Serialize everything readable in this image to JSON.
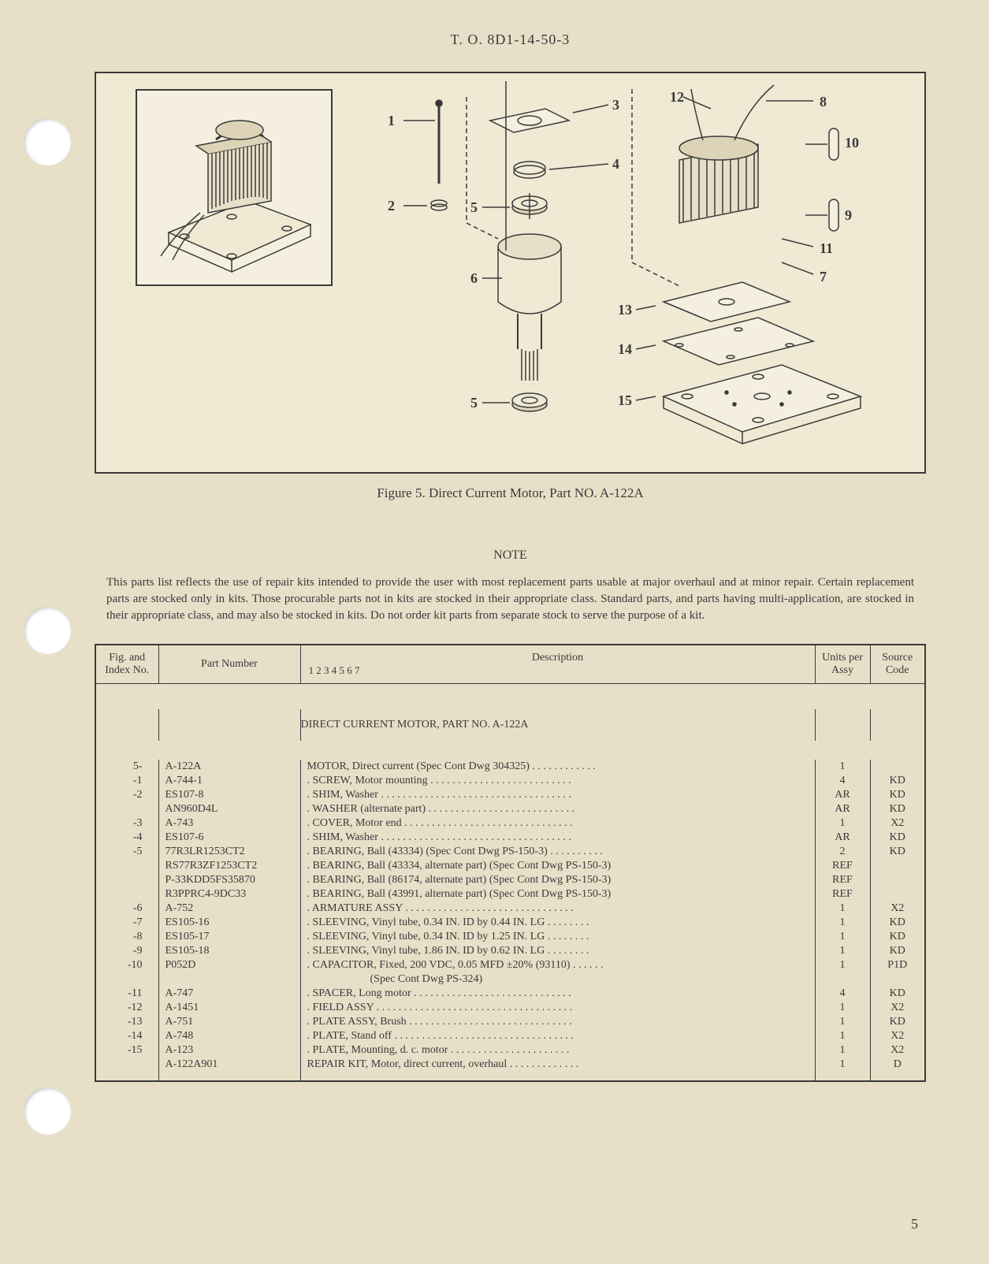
{
  "header": {
    "to_number": "T. O. 8D1-14-50-3"
  },
  "figure": {
    "caption": "Figure 5. Direct Current Motor, Part NO. A-122A",
    "callouts": [
      "1",
      "2",
      "3",
      "4",
      "5",
      "5",
      "6",
      "7",
      "8",
      "9",
      "10",
      "11",
      "12",
      "13",
      "14",
      "15"
    ]
  },
  "note": {
    "heading": "NOTE",
    "text": "This parts list reflects the use of repair kits intended to provide the user with most replacement parts usable at major overhaul and at minor repair. Certain replacement parts are stocked only in kits. Those procurable parts not in kits are stocked in their appropriate class. Standard parts, and parts having multi-application, are stocked in their appropriate class, and may also be stocked in kits. Do not order kit parts from separate stock to serve the purpose of a kit."
  },
  "table": {
    "headers": {
      "figindex": "Fig. and Index No.",
      "partnum": "Part Number",
      "description": "Description",
      "desc_numbers": "1    2    3    4    5    6    7",
      "units": "Units per Assy",
      "source": "Source Code"
    },
    "section_header": "DIRECT CURRENT MOTOR, PART NO. A-122A",
    "rows": [
      {
        "index": "5-",
        "part": "A-122A",
        "desc": "MOTOR, Direct current (Spec Cont Dwg 304325)  . . . . . . . . . . . .",
        "units": "1",
        "source": "",
        "indent": 0
      },
      {
        "index": "-1",
        "part": "A-744-1",
        "desc": ".   SCREW, Motor mounting  . . . . . . . . . . . . . . . . . . . . . . . . . .",
        "units": "4",
        "source": "KD",
        "indent": 0
      },
      {
        "index": "-2",
        "part": "ES107-8",
        "desc": ".   SHIM, Washer  . . . . . . . . . . . . . . . . . . . . . . . . . . . . . . . . . . .",
        "units": "AR",
        "source": "KD",
        "indent": 0
      },
      {
        "index": "",
        "part": "AN960D4L",
        "desc": ".   WASHER (alternate part)  . . . . . . . . . . . . . . . . . . . . . . . . . . .",
        "units": "AR",
        "source": "KD",
        "indent": 0
      },
      {
        "index": "-3",
        "part": "A-743",
        "desc": ".   COVER, Motor end  . . . . . . . . . . . . . . . . . . . . . . . . . . . . . . .",
        "units": "1",
        "source": "X2",
        "indent": 0
      },
      {
        "index": "-4",
        "part": "ES107-6",
        "desc": ".   SHIM, Washer  . . . . . . . . . . . . . . . . . . . . . . . . . . . . . . . . . . .",
        "units": "AR",
        "source": "KD",
        "indent": 0
      },
      {
        "index": "-5",
        "part": "77R3LR1253CT2",
        "desc": ".   BEARING, Ball (43334) (Spec Cont Dwg PS-150-3) . . . . . . . . . .",
        "units": "2",
        "source": "KD",
        "indent": 0
      },
      {
        "index": "",
        "part": "RS77R3ZF1253CT2",
        "desc": ".   BEARING, Ball (43334, alternate part) (Spec Cont Dwg PS-150-3)",
        "units": "REF",
        "source": "",
        "indent": 0
      },
      {
        "index": "",
        "part": "P-33KDD5FS35870",
        "desc": ".   BEARING, Ball (86174, alternate part) (Spec Cont Dwg PS-150-3)",
        "units": "REF",
        "source": "",
        "indent": 0
      },
      {
        "index": "",
        "part": "R3PPRC4-9DC33",
        "desc": ".   BEARING, Ball (43991, alternate part) (Spec Cont Dwg PS-150-3)",
        "units": "REF",
        "source": "",
        "indent": 0
      },
      {
        "index": "-6",
        "part": "A-752",
        "desc": ".   ARMATURE ASSY  . . . . . . . . . . . . . . . . . . . . . . . . . . . . . . .",
        "units": "1",
        "source": "X2",
        "indent": 0
      },
      {
        "index": "-7",
        "part": "ES105-16",
        "desc": ".   SLEEVING, Vinyl tube, 0.34 IN. ID by 0.44 IN. LG  . . . . . . . .",
        "units": "1",
        "source": "KD",
        "indent": 0
      },
      {
        "index": "-8",
        "part": "ES105-17",
        "desc": ".   SLEEVING, Vinyl tube, 0.34 IN. ID by 1.25 IN. LG  . . . . . . . .",
        "units": "1",
        "source": "KD",
        "indent": 0
      },
      {
        "index": "-9",
        "part": "ES105-18",
        "desc": ".   SLEEVING, Vinyl tube, 1.86 IN. ID by 0.62 IN. LG  . . . . . . . .",
        "units": "1",
        "source": "KD",
        "indent": 0
      },
      {
        "index": "-10",
        "part": "P052D",
        "desc": ".   CAPACITOR, Fixed, 200 VDC, 0.05 MFD ±20% (93110)  . . . . . .",
        "units": "1",
        "source": "P1D",
        "indent": 0
      },
      {
        "index": "",
        "part": "",
        "desc": "(Spec Cont Dwg PS-324)",
        "units": "",
        "source": "",
        "indent": 2
      },
      {
        "index": "-11",
        "part": "A-747",
        "desc": ".   SPACER, Long motor  . . . . . . . . . . . . . . . . . . . . . . . . . . . . .",
        "units": "4",
        "source": "KD",
        "indent": 0
      },
      {
        "index": "-12",
        "part": "A-1451",
        "desc": ".   FIELD ASSY . . . . . . . . . . . . . . . . . . . . . . . . . . . . . . . . . . . .",
        "units": "1",
        "source": "X2",
        "indent": 0
      },
      {
        "index": "-13",
        "part": "A-751",
        "desc": ".   PLATE ASSY, Brush  . . . . . . . . . . . . . . . . . . . . . . . . . . . . . .",
        "units": "1",
        "source": "KD",
        "indent": 0
      },
      {
        "index": "-14",
        "part": "A-748",
        "desc": ".   PLATE, Stand off . . . . . . . . . . . . . . . . . . . . . . . . . . . . . . . . .",
        "units": "1",
        "source": "X2",
        "indent": 0
      },
      {
        "index": "-15",
        "part": "A-123",
        "desc": ".   PLATE, Mounting, d. c. motor  . . . . . . . . . . . . . . . . . . . . . .",
        "units": "1",
        "source": "X2",
        "indent": 0
      },
      {
        "index": "",
        "part": "A-122A901",
        "desc": "REPAIR KIT, Motor, direct current, overhaul  . . . . . . . . . . . . .",
        "units": "1",
        "source": "D",
        "indent": 0
      }
    ]
  },
  "page_number": "5",
  "colors": {
    "background": "#e8dfc8",
    "text": "#3a3a3a",
    "border": "#3a3a3a",
    "figure_bg": "#f0e9d4"
  }
}
